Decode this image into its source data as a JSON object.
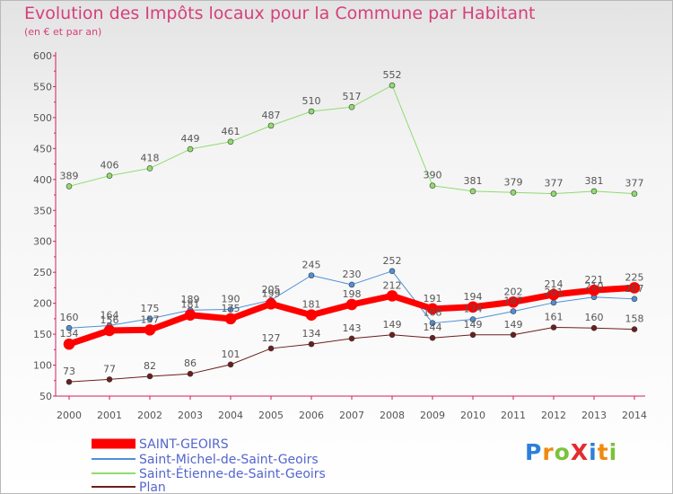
{
  "header": {
    "title": "Evolution des Impôts locaux pour la Commune par Habitant",
    "subtitle": "(en € et par an)"
  },
  "logo": {
    "text": "ProXiti",
    "letters": [
      "P",
      "r",
      "o",
      "X",
      "i",
      "t",
      "i"
    ]
  },
  "colors": {
    "title": "#d6407a",
    "axis": "#d02060",
    "saint_geoirs": "#ff0000",
    "saint_michel": "#4f8fd6",
    "saint_etienne": "#8fdc6e",
    "plan": "#6b1e1e",
    "logo": [
      "#2e7fd9",
      "#ef8a10",
      "#7cc23c",
      "#e52c2c",
      "#2e7fd9",
      "#ef8a10",
      "#7cc23c"
    ]
  },
  "chart_data": {
    "type": "line",
    "title": "Evolution des Impôts locaux pour la Commune par Habitant",
    "subtitle": "(en € et par an)",
    "xlabel": "",
    "ylabel": "",
    "x": [
      "2000",
      "2001",
      "2002",
      "2003",
      "2004",
      "2005",
      "2006",
      "2007",
      "2008",
      "2009",
      "2010",
      "2011",
      "2012",
      "2013",
      "2014"
    ],
    "ylim": [
      50,
      600
    ],
    "yticks": [
      50,
      100,
      150,
      200,
      250,
      300,
      350,
      400,
      450,
      500,
      550,
      600
    ],
    "grid": false,
    "legend_position": "bottom-left",
    "series": [
      {
        "name": "SAINT-GEOIRS",
        "color": "#ff0000",
        "values": [
          134,
          156,
          157,
          181,
          175,
          199,
          181,
          198,
          212,
          191,
          194,
          202,
          214,
          221,
          225
        ]
      },
      {
        "name": "Saint-Michel-de-Saint-Geoirs",
        "color": "#4f8fd6",
        "values": [
          160,
          164,
          175,
          189,
          190,
          205,
          245,
          230,
          252,
          168,
          174,
          187,
          201,
          210,
          207
        ]
      },
      {
        "name": "Saint-Étienne-de-Saint-Geoirs",
        "color": "#8fdc6e",
        "values": [
          389,
          406,
          418,
          449,
          461,
          487,
          510,
          517,
          552,
          390,
          381,
          379,
          377,
          381,
          377
        ]
      },
      {
        "name": "Plan",
        "color": "#6b1e1e",
        "values": [
          73,
          77,
          82,
          86,
          101,
          127,
          134,
          143,
          149,
          144,
          149,
          149,
          161,
          160,
          158
        ]
      }
    ]
  }
}
